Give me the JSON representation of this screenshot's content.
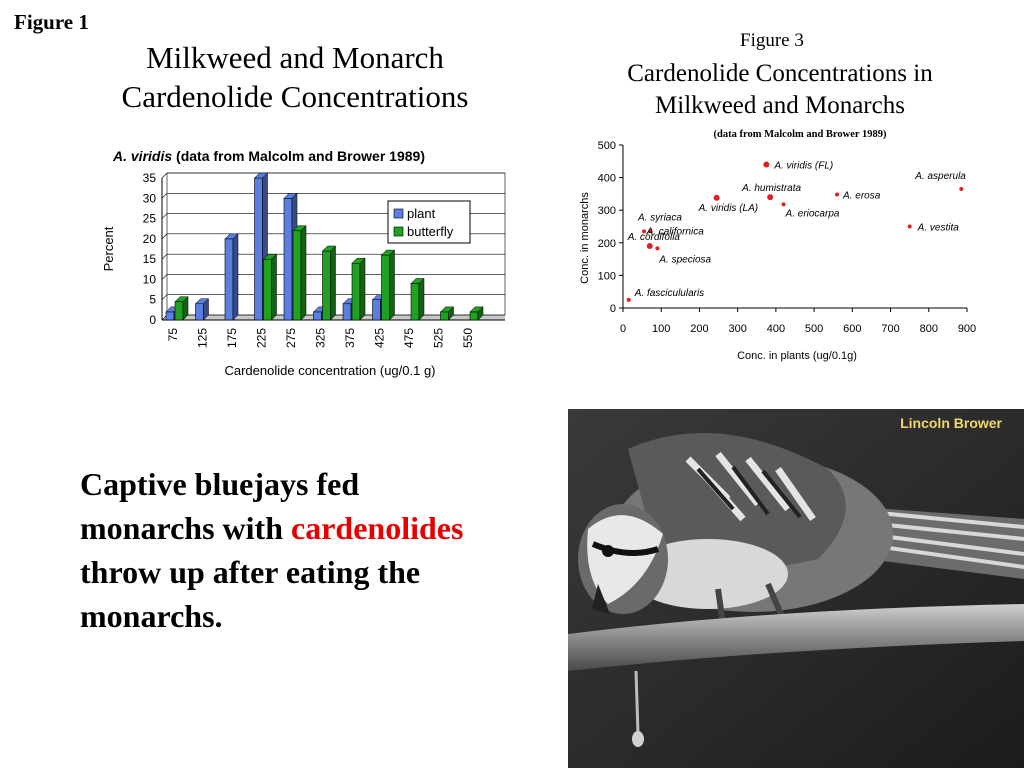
{
  "figure1": {
    "label": "Figure 1",
    "title_line1": "Milkweed and Monarch",
    "title_line2": "Cardenolide Concentrations",
    "subtitle_species": "A. viridis",
    "subtitle_source": "(data from Malcolm and Brower 1989)"
  },
  "figure3": {
    "label": "Figure 3",
    "title_line1": "Cardenolide Concentrations in",
    "title_line2": "Milkweed and Monarchs",
    "subtitle": "(data from Malcolm and Brower 1989)"
  },
  "caption": {
    "part1": "Captive bluejays fed monarchs with ",
    "highlight": "cardenolides",
    "part2": " throw up after eating the monarchs."
  },
  "photo": {
    "credit": "Lincoln Brower"
  },
  "colors": {
    "plant": "#5b7fe0",
    "butterfly": "#1fa21f",
    "highlight": "#e60000",
    "scatter_point": "#e02020"
  },
  "chart_data": [
    {
      "type": "bar",
      "categories": [
        "75",
        "125",
        "175",
        "225",
        "275",
        "325",
        "375",
        "425",
        "475",
        "525",
        "550"
      ],
      "series": [
        {
          "name": "plant",
          "values": [
            2,
            4,
            20,
            35,
            30,
            2,
            4,
            5,
            0,
            0,
            0
          ]
        },
        {
          "name": "butterfly",
          "values": [
            4.5,
            0,
            0,
            15,
            22,
            17,
            14,
            16,
            9,
            2,
            2
          ]
        }
      ],
      "xlabel": "Cardenolide concentration (ug/0.1 g)",
      "ylabel": "Percent",
      "ylim": [
        0,
        35
      ],
      "yticks": [
        0,
        5,
        10,
        15,
        20,
        25,
        30,
        35
      ],
      "grid": true,
      "legend": "top-right"
    },
    {
      "type": "scatter",
      "xlabel": "Conc. in plants (ug/0.1g)",
      "ylabel": "Conc. in monarchs",
      "xlim": [
        0,
        900
      ],
      "ylim": [
        0,
        500
      ],
      "xticks": [
        0,
        100,
        200,
        300,
        400,
        500,
        600,
        700,
        800,
        900
      ],
      "yticks": [
        0,
        100,
        200,
        300,
        400,
        500
      ],
      "points": [
        {
          "label": "A. viridis (FL)",
          "x": 375,
          "y": 440
        },
        {
          "label": "A. asperula",
          "x": 885,
          "y": 365
        },
        {
          "label": "A. humistrata",
          "x": 385,
          "y": 340
        },
        {
          "label": "A. erosa",
          "x": 560,
          "y": 348
        },
        {
          "label": "A. viridis (LA)",
          "x": 245,
          "y": 338
        },
        {
          "label": "A. eriocarpa",
          "x": 420,
          "y": 318
        },
        {
          "label": "A. vestita",
          "x": 750,
          "y": 250
        },
        {
          "label": "A. syriaca",
          "x": 55,
          "y": 235
        },
        {
          "label": "A. californica",
          "x": 72,
          "y": 235
        },
        {
          "label": "A. cordifolia",
          "x": 70,
          "y": 190
        },
        {
          "label": "A. speciosa",
          "x": 90,
          "y": 183
        },
        {
          "label": "A. fasciculularis",
          "x": 15,
          "y": 25
        }
      ]
    }
  ]
}
